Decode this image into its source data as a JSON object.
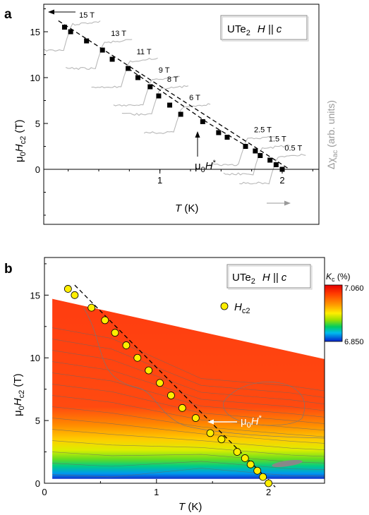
{
  "chart_data": [
    {
      "type": "scatter",
      "panel_label": "a",
      "legend_box": {
        "material": "UTe",
        "material_sub": "2",
        "field": "H || c"
      },
      "xlabel": {
        "symbol": "T",
        "unit": " (K)"
      },
      "ylabel": {
        "prefix": "μ",
        "prefix_sub": "0",
        "symbol": "H",
        "symbol_sub": "c2",
        "unit": " (T)"
      },
      "right_label": {
        "symbol": "Δχ",
        "symbol_sub": "ac",
        "unit": " (arb. units)"
      },
      "annotation": {
        "prefix": "μ",
        "prefix_sub": "0",
        "symbol": "H",
        "sup": "*"
      },
      "xlim": [
        0.05,
        2.3
      ],
      "ylim": [
        -6,
        18
      ],
      "xticks": [
        {
          "value": 1,
          "label": "1"
        },
        {
          "value": 2,
          "label": "2"
        }
      ],
      "yticks": [
        {
          "value": 0,
          "label": "0"
        },
        {
          "value": 5,
          "label": "5"
        },
        {
          "value": 10,
          "label": "10"
        },
        {
          "value": 15,
          "label": "15"
        }
      ],
      "curve_labels": [
        {
          "label": "15 T",
          "field": 15
        },
        {
          "label": "13 T",
          "field": 13
        },
        {
          "label": "11 T",
          "field": 11
        },
        {
          "label": "9 T",
          "field": 9
        },
        {
          "label": "8 T",
          "field": 8
        },
        {
          "label": "6 T",
          "field": 6
        },
        {
          "label": "2.5 T",
          "field": 2.5
        },
        {
          "label": "1.5 T",
          "field": 1.5
        },
        {
          "label": "0.5 T",
          "field": 0.5
        }
      ],
      "points": [
        {
          "x": 0.22,
          "y": 15.5
        },
        {
          "x": 0.27,
          "y": 15.0
        },
        {
          "x": 0.4,
          "y": 14.0
        },
        {
          "x": 0.53,
          "y": 13.0
        },
        {
          "x": 0.61,
          "y": 12.0
        },
        {
          "x": 0.74,
          "y": 11.0
        },
        {
          "x": 0.82,
          "y": 10.0
        },
        {
          "x": 0.92,
          "y": 9.0
        },
        {
          "x": 0.99,
          "y": 8.0
        },
        {
          "x": 1.08,
          "y": 7.0
        },
        {
          "x": 1.17,
          "y": 6.0
        },
        {
          "x": 1.35,
          "y": 5.2
        },
        {
          "x": 1.48,
          "y": 4.0
        },
        {
          "x": 1.55,
          "y": 3.5
        },
        {
          "x": 1.7,
          "y": 2.5
        },
        {
          "x": 1.78,
          "y": 2.0
        },
        {
          "x": 1.82,
          "y": 1.5
        },
        {
          "x": 1.9,
          "y": 1.0
        },
        {
          "x": 1.95,
          "y": 0.5
        },
        {
          "x": 2.0,
          "y": 0.0
        }
      ],
      "dashed_lines": [
        [
          {
            "x": 0.17,
            "y": 16.2
          },
          {
            "x": 2.06,
            "y": 0.0
          }
        ],
        [
          {
            "x": 0.74,
            "y": 11.0
          },
          {
            "x": 1.4,
            "y": 5.0
          },
          {
            "x": 1.7,
            "y": 2.6
          }
        ]
      ]
    },
    {
      "type": "heatmap",
      "panel_label": "b",
      "legend_box": {
        "material": "UTe",
        "material_sub": "2",
        "field": "H || c"
      },
      "xlabel": {
        "symbol": "T",
        "unit": " (K)"
      },
      "ylabel": {
        "prefix": "μ",
        "prefix_sub": "0",
        "symbol": "H",
        "symbol_sub": "c2",
        "unit": " (T)"
      },
      "annotation": {
        "prefix": "μ",
        "prefix_sub": "0",
        "symbol": "H",
        "sup": "*"
      },
      "xlim": [
        0,
        2.5
      ],
      "ylim": [
        0,
        18
      ],
      "xticks": [
        {
          "value": 0,
          "label": "0"
        },
        {
          "value": 1,
          "label": "1"
        },
        {
          "value": 2,
          "label": "2"
        }
      ],
      "yticks": [
        {
          "value": 0,
          "label": "0"
        },
        {
          "value": 5,
          "label": "5"
        },
        {
          "value": 10,
          "label": "10"
        },
        {
          "value": 15,
          "label": "15"
        }
      ],
      "colorbar": {
        "symbol": "K",
        "symbol_sub": "c",
        "unit": " (%)",
        "max_label": "7.060",
        "min_label": "6.850",
        "max": 7.06,
        "min": 6.85
      },
      "legend_entry": {
        "symbol": "H",
        "symbol_sub": "c2",
        "color": "#ffee00"
      },
      "map_region": {
        "x": [
          0.07,
          2.5
        ],
        "top_y": [
          14.7,
          9.9
        ],
        "bottom_y": 0.35
      },
      "points": [
        {
          "x": 0.21,
          "y": 15.5
        },
        {
          "x": 0.27,
          "y": 15.0
        },
        {
          "x": 0.42,
          "y": 14.0
        },
        {
          "x": 0.54,
          "y": 13.0
        },
        {
          "x": 0.63,
          "y": 12.0
        },
        {
          "x": 0.73,
          "y": 11.0
        },
        {
          "x": 0.83,
          "y": 10.0
        },
        {
          "x": 0.93,
          "y": 9.0
        },
        {
          "x": 1.03,
          "y": 8.0
        },
        {
          "x": 1.13,
          "y": 7.0
        },
        {
          "x": 1.23,
          "y": 6.0
        },
        {
          "x": 1.35,
          "y": 5.2
        },
        {
          "x": 1.48,
          "y": 4.0
        },
        {
          "x": 1.58,
          "y": 3.5
        },
        {
          "x": 1.72,
          "y": 2.5
        },
        {
          "x": 1.79,
          "y": 2.0
        },
        {
          "x": 1.84,
          "y": 1.5
        },
        {
          "x": 1.9,
          "y": 1.0
        },
        {
          "x": 1.95,
          "y": 0.5
        },
        {
          "x": 2.0,
          "y": 0.0
        }
      ],
      "dashed_line": [
        {
          "x": 0.27,
          "y": 15.8
        },
        {
          "x": 2.06,
          "y": -0.3
        }
      ]
    }
  ]
}
